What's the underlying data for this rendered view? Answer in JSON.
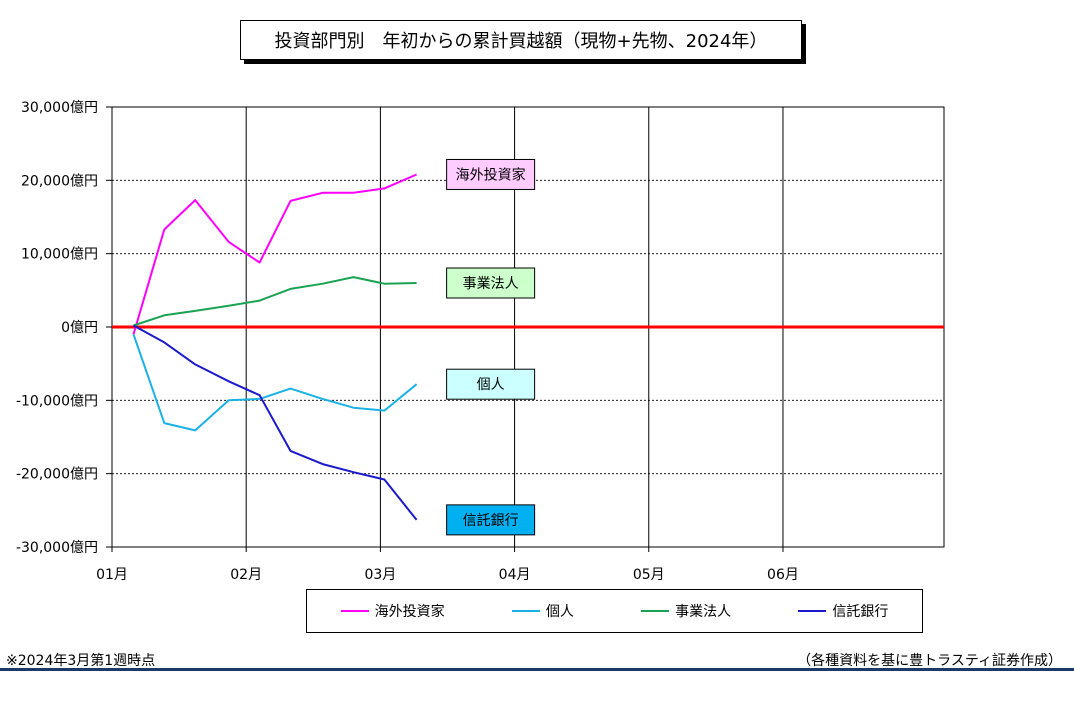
{
  "chart_data": {
    "type": "line",
    "title": "投資部門別　年初からの累計買越額（現物+先物、2024年）",
    "xlabel": "",
    "ylabel": "",
    "x_ticks": [
      "01月",
      "02月",
      "03月",
      "04月",
      "05月",
      "06月"
    ],
    "x_tick_values": [
      1,
      2,
      3,
      4,
      5,
      6
    ],
    "xlim": [
      1,
      7.2
    ],
    "ylim": [
      -30000,
      30000
    ],
    "y_ticks": [
      {
        "value": 30000,
        "label": "30,000億円"
      },
      {
        "value": 20000,
        "label": "20,000億円"
      },
      {
        "value": 10000,
        "label": "10,000億円"
      },
      {
        "value": 0,
        "label": "0億円"
      },
      {
        "value": -10000,
        "label": "-10,000億円"
      },
      {
        "value": -20000,
        "label": "-20,000億円"
      },
      {
        "value": -30000,
        "label": "-30,000億円"
      }
    ],
    "grid": true,
    "legend_position": "bottom",
    "x": [
      1.16,
      1.39,
      1.62,
      1.87,
      2.1,
      2.33,
      2.57,
      2.8,
      3.03,
      3.27
    ],
    "series": [
      {
        "name": "海外投資家",
        "color": "#ff00ff",
        "label_box_color": "#ffccff",
        "values": [
          -1000,
          13300,
          17300,
          11600,
          8800,
          17200,
          18300,
          18300,
          18900,
          20800
        ]
      },
      {
        "name": "個人",
        "color": "#1ab2e6",
        "label_box_color": "#ccffff",
        "values": [
          -1000,
          -13100,
          -14100,
          -10000,
          -9800,
          -8400,
          -9800,
          -11000,
          -11400,
          -7800
        ]
      },
      {
        "name": "事業法人",
        "color": "#1aa352",
        "label_box_color": "#ccffcc",
        "values": [
          200,
          1600,
          2200,
          2900,
          3600,
          5200,
          5900,
          6800,
          5900,
          6000
        ]
      },
      {
        "name": "信託銀行",
        "color": "#1a1acc",
        "label_box_color": "#00b0f0",
        "values": [
          200,
          -2100,
          -5100,
          -7400,
          -9300,
          -16900,
          -18700,
          -19800,
          -20800,
          -26300
        ]
      }
    ]
  },
  "footnote": "※2024年3月第1週時点",
  "source": "（各種資料を基に豊トラスティ証券作成）"
}
